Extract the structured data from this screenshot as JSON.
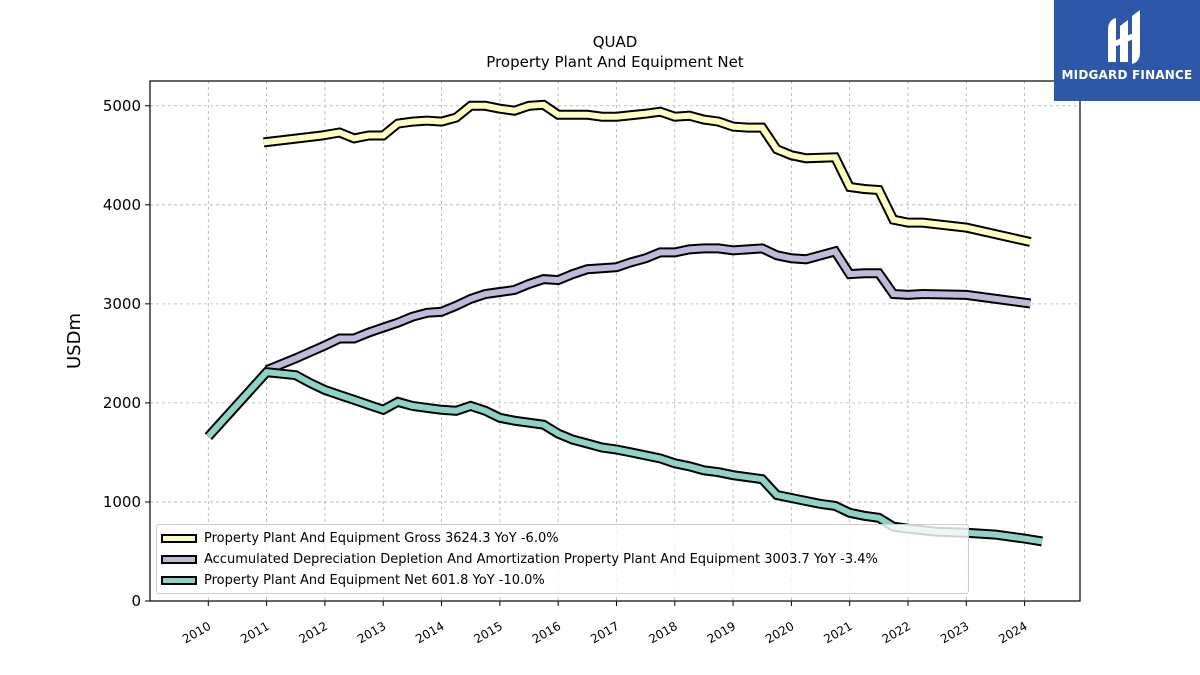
{
  "chart_data": {
    "type": "line",
    "title": "QUAD",
    "subtitle": "Property Plant And Equipment Net",
    "xlabel": "",
    "ylabel": "USDm",
    "ylim": [
      0,
      5250
    ],
    "xlim": [
      2009.0,
      2024.95
    ],
    "yticks": [
      0,
      1000,
      2000,
      3000,
      4000,
      5000
    ],
    "xticks": [
      2010,
      2011,
      2012,
      2013,
      2014,
      2015,
      2016,
      2017,
      2018,
      2019,
      2020,
      2021,
      2022,
      2023,
      2024
    ],
    "xtick_labels": [
      "2010",
      "2011",
      "2012",
      "2013",
      "2014",
      "2015",
      "2016",
      "2017",
      "2018",
      "2019",
      "2020",
      "2021",
      "2022",
      "2023",
      "2024"
    ],
    "ytick_labels": [
      "0",
      "1000",
      "2000",
      "3000",
      "4000",
      "5000"
    ],
    "grid": true,
    "legend_position": "lower-left",
    "series": [
      {
        "name": "Property Plant And Equipment Gross",
        "legend": "Property Plant And Equipment Gross  3624.3 YoY -6.0%",
        "color": "#ffffc0",
        "x": [
          2010.95,
          2011.95,
          2012.25,
          2012.5,
          2012.75,
          2013.0,
          2013.25,
          2013.5,
          2013.75,
          2014.0,
          2014.25,
          2014.5,
          2014.75,
          2015.0,
          2015.25,
          2015.5,
          2015.75,
          2016.0,
          2016.5,
          2016.75,
          2017.0,
          2017.5,
          2017.75,
          2018.0,
          2018.25,
          2018.5,
          2018.75,
          2019.0,
          2019.25,
          2019.5,
          2019.75,
          2020.0,
          2020.25,
          2020.75,
          2021.0,
          2021.25,
          2021.5,
          2021.75,
          2022.0,
          2022.25,
          2023.0,
          2024.1
        ],
        "values": [
          4630,
          4700,
          4730,
          4670,
          4700,
          4700,
          4820,
          4840,
          4850,
          4840,
          4880,
          5000,
          5000,
          4970,
          4950,
          5000,
          5010,
          4910,
          4910,
          4890,
          4890,
          4920,
          4940,
          4890,
          4900,
          4860,
          4840,
          4790,
          4780,
          4780,
          4560,
          4500,
          4470,
          4480,
          4180,
          4160,
          4150,
          3850,
          3820,
          3820,
          3770,
          3624.3
        ]
      },
      {
        "name": "Accumulated Depreciation Depletion And Amortization Property Plant And Equipment",
        "legend": "Accumulated Depreciation Depletion And Amortization Property Plant And Equipment  3003.7 YoY -3.4%",
        "color": "#bebada",
        "x": [
          2011.0,
          2011.5,
          2012.0,
          2012.25,
          2012.5,
          2012.75,
          2013.0,
          2013.25,
          2013.5,
          2013.75,
          2014.0,
          2014.25,
          2014.5,
          2014.75,
          2015.0,
          2015.25,
          2015.5,
          2015.75,
          2016.0,
          2016.25,
          2016.5,
          2016.75,
          2017.0,
          2017.25,
          2017.5,
          2017.75,
          2018.0,
          2018.25,
          2018.5,
          2018.75,
          2019.0,
          2019.25,
          2019.5,
          2019.75,
          2020.0,
          2020.25,
          2020.75,
          2021.0,
          2021.25,
          2021.5,
          2021.75,
          2022.0,
          2022.25,
          2023.0,
          2024.1
        ],
        "values": [
          2330,
          2450,
          2580,
          2650,
          2650,
          2710,
          2760,
          2810,
          2870,
          2910,
          2920,
          2980,
          3050,
          3100,
          3120,
          3140,
          3200,
          3250,
          3240,
          3300,
          3350,
          3360,
          3370,
          3420,
          3460,
          3520,
          3520,
          3550,
          3560,
          3560,
          3540,
          3550,
          3560,
          3490,
          3460,
          3450,
          3530,
          3300,
          3310,
          3310,
          3100,
          3090,
          3100,
          3090,
          3003.7
        ]
      },
      {
        "name": "Property Plant And Equipment Net",
        "legend": "Property Plant And Equipment Net  601.8 YoY -10.0%",
        "color": "#8dd3c7",
        "x": [
          2010.0,
          2011.0,
          2011.5,
          2011.75,
          2012.0,
          2012.25,
          2012.5,
          2012.75,
          2013.0,
          2013.25,
          2013.5,
          2013.75,
          2014.0,
          2014.25,
          2014.5,
          2014.75,
          2015.0,
          2015.25,
          2015.5,
          2015.75,
          2016.0,
          2016.25,
          2016.5,
          2016.75,
          2017.0,
          2017.25,
          2017.5,
          2017.75,
          2018.0,
          2018.25,
          2018.5,
          2018.75,
          2019.0,
          2019.25,
          2019.5,
          2019.75,
          2020.0,
          2020.25,
          2020.5,
          2020.75,
          2021.0,
          2021.25,
          2021.5,
          2021.75,
          2022.0,
          2022.5,
          2023.0,
          2023.5,
          2024.0,
          2024.3
        ],
        "values": [
          1660,
          2310,
          2280,
          2200,
          2130,
          2080,
          2030,
          1980,
          1930,
          2010,
          1970,
          1950,
          1930,
          1920,
          1970,
          1920,
          1850,
          1820,
          1800,
          1780,
          1690,
          1630,
          1590,
          1550,
          1530,
          1500,
          1470,
          1440,
          1390,
          1360,
          1320,
          1300,
          1270,
          1250,
          1230,
          1070,
          1040,
          1010,
          980,
          960,
          890,
          860,
          840,
          750,
          730,
          700,
          690,
          670,
          630,
          601.8
        ]
      }
    ]
  }
}
